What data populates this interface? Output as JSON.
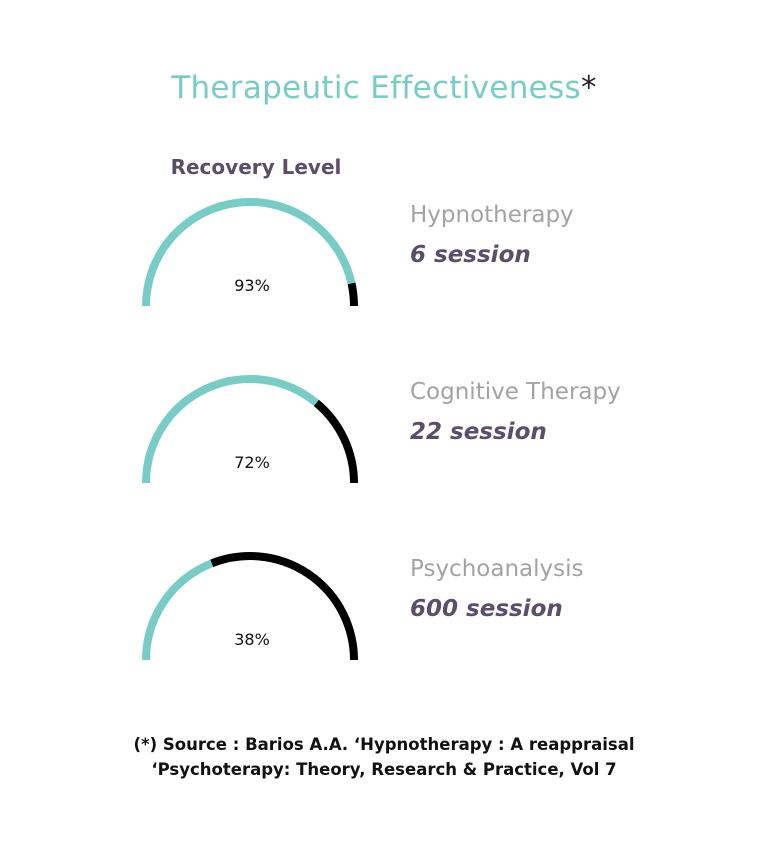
{
  "title": "Therapeutic Effectiveness",
  "title_mark": "*",
  "section_label": "Recovery Level",
  "colors": {
    "teal": "#77cdc5",
    "remainder": "#000000",
    "name": "#a3a3a3",
    "sessions": "#5a4e6b"
  },
  "chart_data": {
    "type": "gauge",
    "title": "Therapeutic Effectiveness",
    "series_label": "Recovery Level",
    "items": [
      {
        "name": "Hypnotherapy",
        "sessions": "6 session",
        "value": 93,
        "label": "93%"
      },
      {
        "name": "Cognitive Therapy",
        "sessions": "22 session",
        "value": 72,
        "label": "72%"
      },
      {
        "name": "Psychoanalysis",
        "sessions": "600 session",
        "value": 38,
        "label": "38%"
      }
    ],
    "range": [
      0,
      100
    ]
  },
  "source_line1": "(*) Source : Barios A.A. ‘Hypnotherapy : A reappraisal",
  "source_line2": "‘Psychoterapy: Theory, Research & Practice, Vol 7"
}
